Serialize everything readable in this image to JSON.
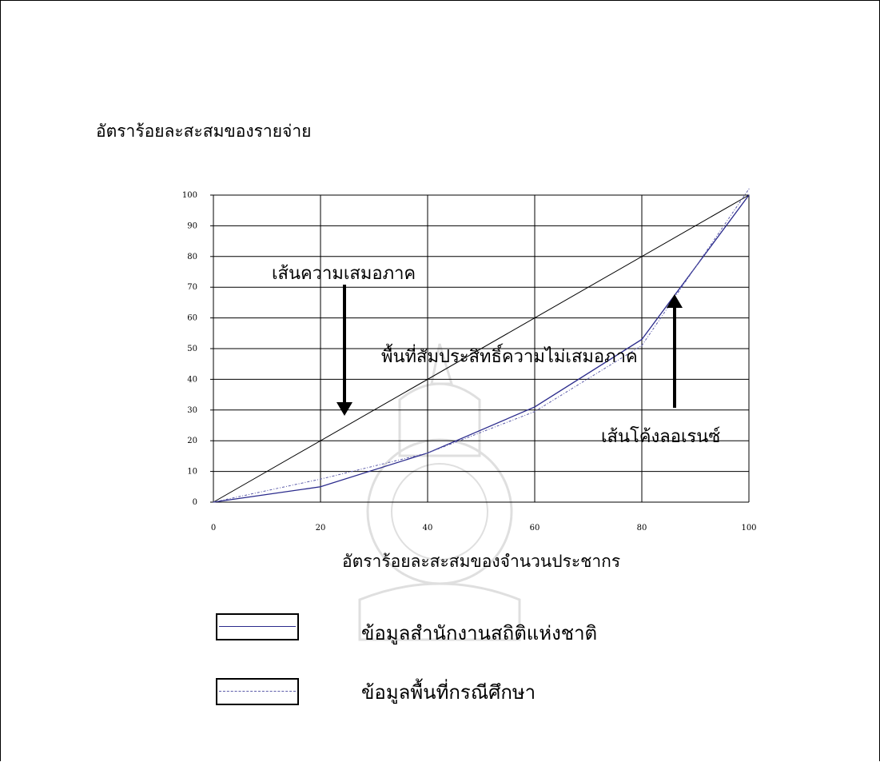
{
  "chart_data": {
    "type": "line",
    "xlabel": "อัตราร้อยละสะสมของจำนวนประชากร",
    "ylabel": "อัตราร้อยละสะสมของรายจ่าย",
    "xlim": [
      0,
      100
    ],
    "ylim": [
      0,
      100
    ],
    "x_ticks": [
      0,
      20,
      40,
      60,
      80,
      100
    ],
    "y_ticks": [
      0,
      10,
      20,
      30,
      40,
      50,
      60,
      70,
      80,
      90,
      100
    ],
    "grid": true,
    "series": [
      {
        "id": "equality",
        "x": [
          0,
          100
        ],
        "values": [
          0,
          100
        ]
      },
      {
        "name": "ข้อมูลสำนักงานสถิติแห่งชาติ",
        "x": [
          0,
          20,
          40,
          60,
          80,
          100
        ],
        "values": [
          0,
          5,
          16,
          31,
          53,
          100
        ]
      },
      {
        "name": "ข้อมูลพื้นที่กรณีศึกษา",
        "x": [
          0,
          20,
          40,
          60,
          80,
          100
        ],
        "values": [
          0,
          7.5,
          16,
          29.5,
          51,
          102
        ]
      }
    ],
    "annotations": [
      {
        "id": "equality",
        "text": "เส้นความเสมอภาค"
      },
      {
        "id": "area",
        "text": "พื้นที่สัมประสิทธิ์ความไม่เสมอภาค"
      },
      {
        "id": "lorenz",
        "text": "เส้นโค้งลอเรนซ์"
      }
    ],
    "legend": [
      {
        "label": "ข้อมูลสำนักงานสถิติแห่งชาติ"
      },
      {
        "label": "ข้อมูลพื้นที่กรณีศึกษา"
      }
    ],
    "legend_position": "bottom-left"
  },
  "colors": {
    "national": "#2a2a8c",
    "study": "#5a5aa8",
    "equality": "#000000",
    "grid": "#000000"
  }
}
